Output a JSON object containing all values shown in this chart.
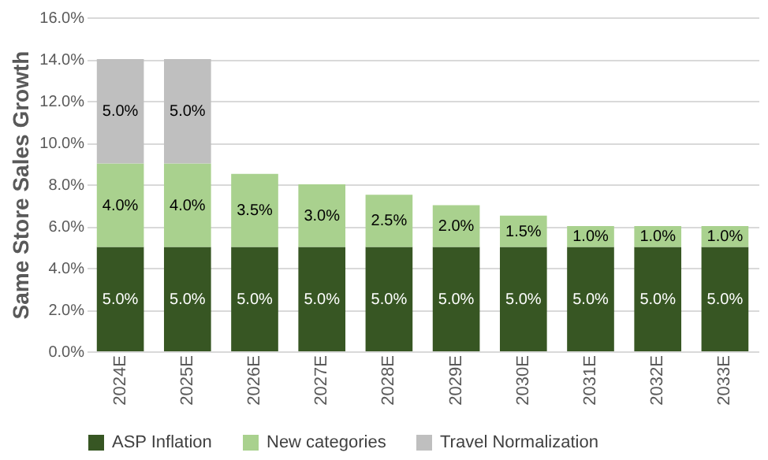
{
  "chart_data": {
    "type": "bar",
    "stacked": true,
    "ylabel": "Same Store Sales Growth",
    "categories": [
      "2024E",
      "2025E",
      "2026E",
      "2027E",
      "2028E",
      "2029E",
      "2030E",
      "2031E",
      "2032E",
      "2033E"
    ],
    "series": [
      {
        "name": "ASP Inflation",
        "color": "#375623",
        "values": [
          5.0,
          5.0,
          5.0,
          5.0,
          5.0,
          5.0,
          5.0,
          5.0,
          5.0,
          5.0
        ],
        "value_labels": [
          "5.0%",
          "5.0%",
          "5.0%",
          "5.0%",
          "5.0%",
          "5.0%",
          "5.0%",
          "5.0%",
          "5.0%",
          "5.0%"
        ]
      },
      {
        "name": "New categories",
        "color": "#a9d18e",
        "values": [
          4.0,
          4.0,
          3.5,
          3.0,
          2.5,
          2.0,
          1.5,
          1.0,
          1.0,
          1.0
        ],
        "value_labels": [
          "4.0%",
          "4.0%",
          "3.5%",
          "3.0%",
          "2.5%",
          "2.0%",
          "1.5%",
          "1.0%",
          "1.0%",
          "1.0%"
        ]
      },
      {
        "name": "Travel Normalization",
        "color": "#bfbfbf",
        "values": [
          5.0,
          5.0,
          null,
          null,
          null,
          null,
          null,
          null,
          null,
          null
        ],
        "value_labels": [
          "5.0%",
          "5.0%",
          null,
          null,
          null,
          null,
          null,
          null,
          null,
          null
        ]
      }
    ],
    "ylim": [
      0,
      16
    ],
    "yticks": [
      {
        "value": 0,
        "label": "0.0%"
      },
      {
        "value": 2,
        "label": "2.0%"
      },
      {
        "value": 4,
        "label": "4.0%"
      },
      {
        "value": 6,
        "label": "6.0%"
      },
      {
        "value": 8,
        "label": "8.0%"
      },
      {
        "value": 10,
        "label": "10.0%"
      },
      {
        "value": 12,
        "label": "12.0%"
      },
      {
        "value": 14,
        "label": "14.0%"
      },
      {
        "value": 16,
        "label": "16.0%"
      }
    ],
    "grid": "y",
    "legend": "bottom"
  }
}
